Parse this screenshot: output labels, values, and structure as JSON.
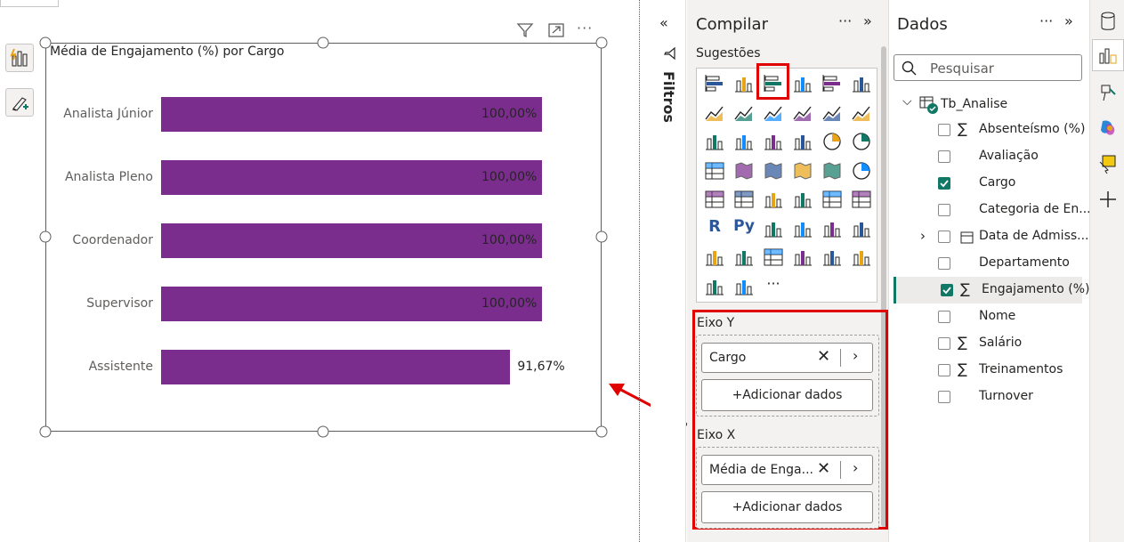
{
  "canvas": {
    "visual_title": "Média de Engajamento (%) por Cargo",
    "header_icons": [
      "filter-icon",
      "focus-mode-icon",
      "more-options-icon"
    ],
    "tool_icons": [
      "format-visual-icon",
      "format-brush-icon"
    ]
  },
  "chart_data": {
    "type": "bar",
    "orientation": "horizontal",
    "title": "Média de Engajamento (%) por Cargo",
    "categories": [
      "Analista Júnior",
      "Analista Pleno",
      "Coordenador",
      "Supervisor",
      "Assistente"
    ],
    "values": [
      100.0,
      100.0,
      100.0,
      100.0,
      91.67
    ],
    "labels": [
      "100,00%",
      "100,00%",
      "100,00%",
      "100,00%",
      "91,67%"
    ],
    "xlim": [
      0,
      100
    ],
    "grid": false,
    "bar_color": "#7b2d8e"
  },
  "filters_pane": {
    "label": "Filtros"
  },
  "build_pane": {
    "title": "Compilar",
    "suggestions_label": "Sugestões",
    "more_icon": "more-options-icon",
    "y_axis": {
      "label": "Eixo Y",
      "field": "Cargo",
      "add_label": "+Adicionar dados"
    },
    "x_axis": {
      "label": "Eixo X",
      "field": "Média de Enga...",
      "add_label": "+Adicionar dados"
    },
    "selected_visual": "clustered-bar-chart-icon",
    "highlight_color": "#e00000"
  },
  "data_pane": {
    "title": "Dados",
    "search_placeholder": "Pesquisar",
    "table": "Tb_Analise",
    "fields": [
      {
        "label": "Absenteísmo (%)",
        "sigma": "∑",
        "checked": false
      },
      {
        "label": "Avaliação",
        "sigma": "",
        "checked": false
      },
      {
        "label": "Cargo",
        "sigma": "",
        "checked": true
      },
      {
        "label": "Categoria de En...",
        "sigma": "",
        "checked": false
      },
      {
        "label": "Data de Admiss...",
        "sigma": "",
        "checked": false,
        "expandable": true
      },
      {
        "label": "Departamento",
        "sigma": "",
        "checked": false
      },
      {
        "label": "Engajamento (%)",
        "sigma": "∑",
        "checked": true
      },
      {
        "label": "Nome",
        "sigma": "",
        "checked": false
      },
      {
        "label": "Salário",
        "sigma": "∑",
        "checked": false
      },
      {
        "label": "Treinamentos",
        "sigma": "∑",
        "checked": false
      },
      {
        "label": "Turnover",
        "sigma": "",
        "checked": false
      }
    ]
  },
  "colors": {
    "accent": "#117865",
    "bar": "#7b2d8e",
    "annotation": "#e00000"
  }
}
